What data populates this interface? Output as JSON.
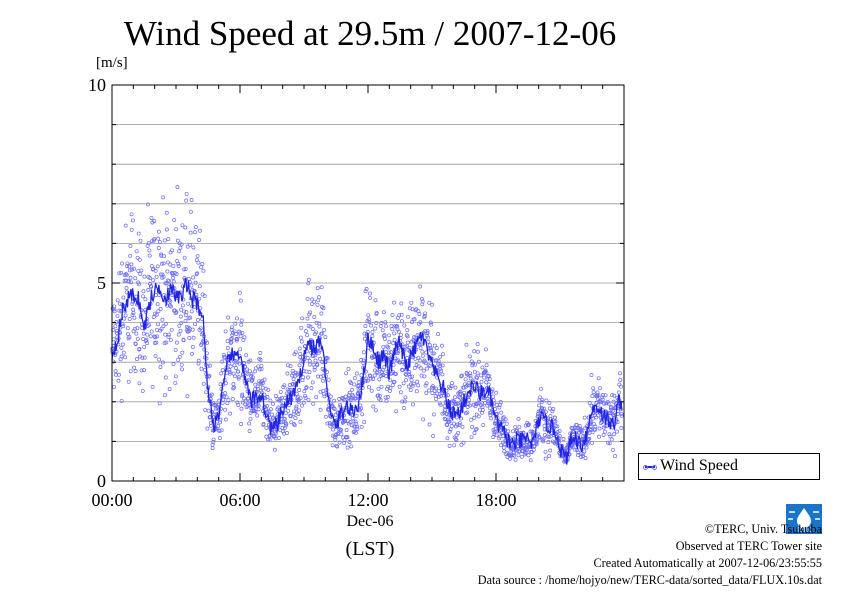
{
  "title": "Wind Speed at 29.5m / 2007-12-06",
  "colors": {
    "line": "#1f25e0",
    "points": "#6b6bff",
    "grid": "#999999"
  },
  "chart_data": {
    "type": "scatter",
    "title": "Wind Speed at 29.5m / 2007-12-06",
    "ylabel": "[m/s]",
    "xlabel": "(LST)",
    "date_label": "Dec-06",
    "ylim": [
      0,
      10
    ],
    "xlim": [
      "00:00",
      "24:00"
    ],
    "y_ticks": [
      "0",
      "5",
      "10"
    ],
    "x_ticks": [
      "00:00",
      "06:00",
      "12:00",
      "18:00"
    ],
    "grid": true,
    "legend": {
      "position": "bottom-right",
      "entries": [
        "Wind Speed"
      ]
    },
    "series": [
      {
        "name": "Wind Speed",
        "style": "line (running mean) with scatter points",
        "x_hours": [
          0.0,
          0.25,
          0.5,
          0.75,
          1.0,
          1.25,
          1.5,
          1.75,
          2.0,
          2.25,
          2.5,
          2.75,
          3.0,
          3.25,
          3.5,
          3.75,
          4.0,
          4.25,
          4.5,
          4.75,
          5.0,
          5.25,
          5.5,
          5.75,
          6.0,
          6.25,
          6.5,
          6.75,
          7.0,
          7.25,
          7.5,
          7.75,
          8.0,
          8.25,
          8.5,
          8.75,
          9.0,
          9.25,
          9.5,
          9.75,
          10.0,
          10.25,
          10.5,
          10.75,
          11.0,
          11.25,
          11.5,
          11.75,
          12.0,
          12.25,
          12.5,
          12.75,
          13.0,
          13.25,
          13.5,
          13.75,
          14.0,
          14.25,
          14.5,
          14.75,
          15.0,
          15.25,
          15.5,
          15.75,
          16.0,
          16.25,
          16.5,
          16.75,
          17.0,
          17.25,
          17.5,
          17.75,
          18.0,
          18.25,
          18.5,
          18.75,
          19.0,
          19.25,
          19.5,
          19.75,
          20.0,
          20.25,
          20.5,
          20.75,
          21.0,
          21.25,
          21.5,
          21.75,
          22.0,
          22.25,
          22.5,
          22.75,
          23.0,
          23.25,
          23.5,
          23.75
        ],
        "values": [
          3.2,
          3.6,
          4.3,
          4.6,
          4.7,
          4.6,
          3.8,
          4.5,
          4.8,
          4.9,
          4.6,
          4.8,
          4.7,
          4.6,
          5.0,
          4.6,
          4.5,
          4.2,
          2.3,
          1.4,
          1.7,
          2.4,
          3.2,
          3.1,
          3.3,
          2.5,
          2.0,
          2.1,
          2.2,
          1.6,
          1.3,
          1.4,
          1.8,
          2.0,
          2.2,
          2.4,
          3.2,
          3.5,
          3.3,
          3.6,
          2.8,
          1.6,
          1.4,
          1.7,
          1.9,
          1.7,
          1.9,
          2.5,
          3.6,
          3.4,
          3.0,
          3.2,
          2.7,
          3.3,
          3.5,
          2.9,
          3.1,
          3.4,
          3.7,
          3.3,
          2.9,
          2.6,
          2.4,
          1.9,
          1.7,
          1.7,
          2.0,
          2.3,
          2.4,
          2.2,
          2.3,
          2.1,
          1.5,
          1.3,
          1.1,
          0.9,
          1.0,
          1.0,
          1.1,
          0.9,
          1.6,
          1.5,
          1.4,
          1.3,
          0.9,
          0.5,
          1.0,
          1.1,
          0.9,
          1.2,
          1.8,
          1.9,
          1.7,
          1.5,
          1.4,
          2.0
        ]
      }
    ]
  },
  "legend_label": "Wind Speed",
  "credits": {
    "line1": "©TERC, Univ. Tsukuba",
    "line2": "Observed at TERC Tower site",
    "line3": "Created Automatically at 2007-12-06/23:55:55",
    "line4": "Data source : /home/hojyo/new/TERC-data/sorted_data/FLUX.10s.dat"
  },
  "logo": {
    "text": "TERC",
    "icon": "terc-logo"
  }
}
